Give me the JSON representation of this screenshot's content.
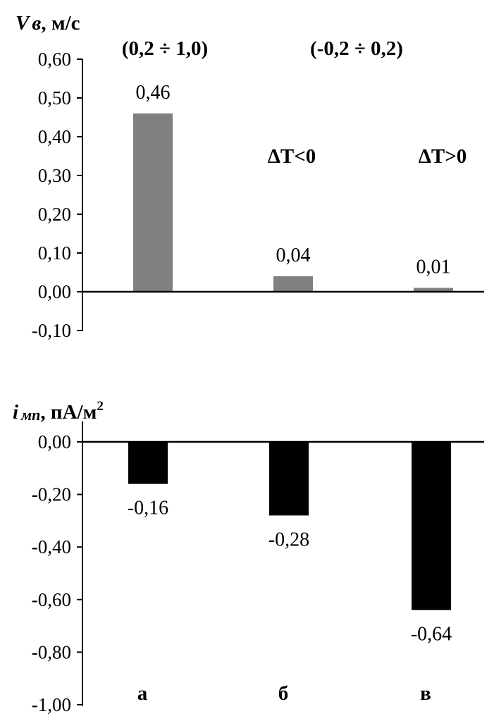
{
  "chart_data": [
    {
      "type": "bar",
      "ylabel_main": "V",
      "ylabel_sub": "в",
      "ylabel_unit": ", м/с",
      "ylim": [
        -0.1,
        0.6
      ],
      "yticks": [
        "-0,10",
        "0,00",
        "0,10",
        "0,20",
        "0,30",
        "0,40",
        "0,50",
        "0,60"
      ],
      "ytick_values": [
        -0.1,
        0.0,
        0.1,
        0.2,
        0.3,
        0.4,
        0.5,
        0.6
      ],
      "values": [
        0.46,
        0.04,
        0.01
      ],
      "value_labels": [
        "0,46",
        "0,04",
        "0,01"
      ],
      "bar_color": "#808080",
      "annotations": {
        "range_1": "(0,2 ÷ 1,0)",
        "range_2": "(-0,2 ÷ 0,2)",
        "cond_1": "ΔT<0",
        "cond_2": "ΔT>0"
      },
      "grid": false
    },
    {
      "type": "bar",
      "ylabel_main": "i",
      "ylabel_sub": "мп",
      "ylabel_unit": ", пА/м",
      "ylabel_sup": "2",
      "ylim": [
        -1.0,
        0.0
      ],
      "yticks": [
        "0,00",
        "-0,20",
        "-0,40",
        "-0,60",
        "-0,80",
        "-1,00"
      ],
      "ytick_values": [
        0.0,
        -0.2,
        -0.4,
        -0.6,
        -0.8,
        -1.0
      ],
      "categories": [
        "а",
        "б",
        "в"
      ],
      "values": [
        -0.16,
        -0.28,
        -0.64
      ],
      "value_labels": [
        "-0,16",
        "-0,28",
        "-0,64"
      ],
      "bar_color": "#000000",
      "grid": false
    }
  ]
}
